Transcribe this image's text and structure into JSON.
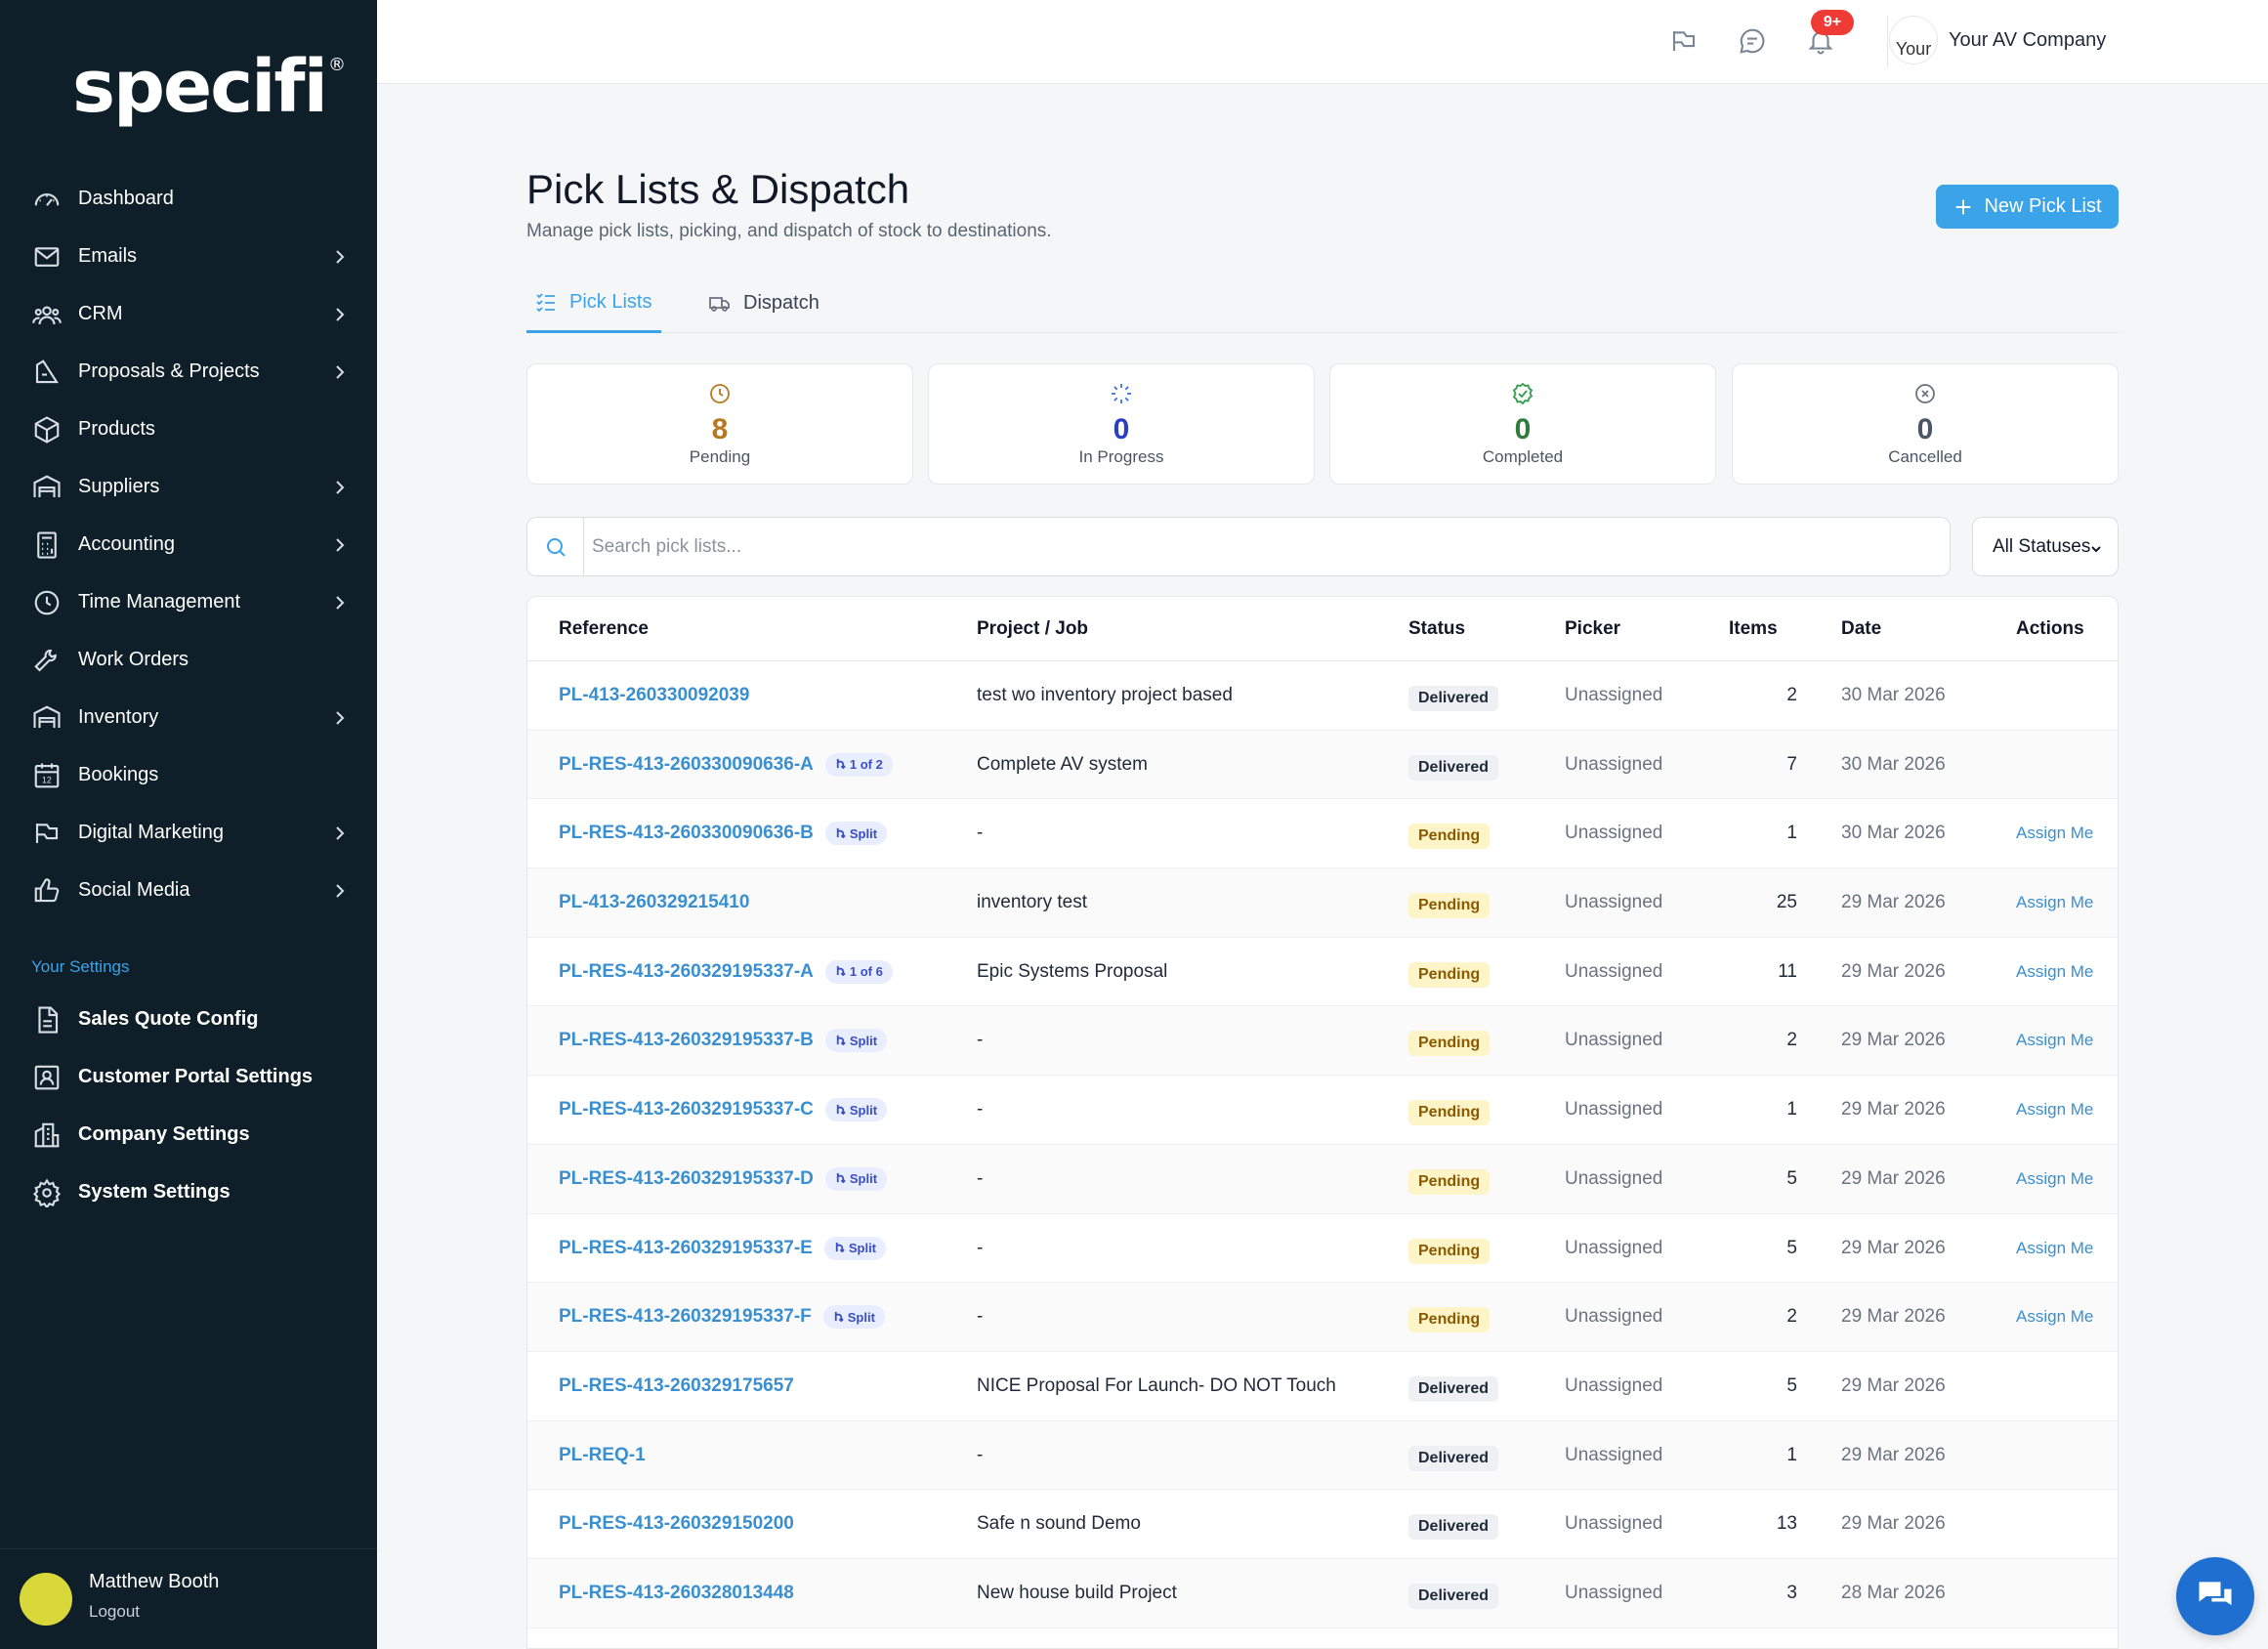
{
  "brand": {
    "logo_text": "specifi",
    "reg": "®"
  },
  "sidebar": {
    "items": [
      {
        "label": "Dashboard",
        "icon": "gauge-icon",
        "chevron": false
      },
      {
        "label": "Emails",
        "icon": "mail-icon",
        "chevron": true
      },
      {
        "label": "CRM",
        "icon": "users-icon",
        "chevron": true
      },
      {
        "label": "Proposals & Projects",
        "icon": "drafting-icon",
        "chevron": true
      },
      {
        "label": "Products",
        "icon": "box-icon",
        "chevron": false
      },
      {
        "label": "Suppliers",
        "icon": "warehouse-icon",
        "chevron": true
      },
      {
        "label": "Accounting",
        "icon": "calculator-icon",
        "chevron": true
      },
      {
        "label": "Time Management",
        "icon": "clock-icon",
        "chevron": true
      },
      {
        "label": "Work Orders",
        "icon": "tools-icon",
        "chevron": false
      },
      {
        "label": "Inventory",
        "icon": "warehouse-icon",
        "chevron": true
      },
      {
        "label": "Bookings",
        "icon": "calendar-icon",
        "chevron": false
      },
      {
        "label": "Digital Marketing",
        "icon": "megaphone-icon",
        "chevron": true
      },
      {
        "label": "Social Media",
        "icon": "thumbs-up-icon",
        "chevron": true
      }
    ],
    "settings_title": "Your Settings",
    "settings": [
      {
        "label": "Sales Quote Config",
        "icon": "document-icon"
      },
      {
        "label": "Customer Portal Settings",
        "icon": "portal-icon"
      },
      {
        "label": "Company Settings",
        "icon": "building-icon"
      },
      {
        "label": "System Settings",
        "icon": "gear-icon"
      }
    ],
    "user": {
      "name": "Matthew Booth",
      "logout": "Logout"
    }
  },
  "header": {
    "notification_badge": "9+",
    "company_logo_text": "Your",
    "company_name": "Your AV Company"
  },
  "page": {
    "title": "Pick Lists & Dispatch",
    "subtitle": "Manage pick lists, picking, and dispatch of stock to destinations.",
    "new_button": "New Pick List"
  },
  "tabs": [
    {
      "label": "Pick Lists",
      "active": true
    },
    {
      "label": "Dispatch",
      "active": false
    }
  ],
  "stats": [
    {
      "value": "8",
      "label": "Pending",
      "color": "#b7791f"
    },
    {
      "value": "0",
      "label": "In Progress",
      "color": "#2b3fc2"
    },
    {
      "value": "0",
      "label": "Completed",
      "color": "#2f7d3b"
    },
    {
      "value": "0",
      "label": "Cancelled",
      "color": "#4b5563"
    }
  ],
  "search": {
    "placeholder": "Search pick lists...",
    "status_filter": "All Statuses"
  },
  "table": {
    "headers": [
      "Reference",
      "Project / Job",
      "Status",
      "Picker",
      "Items",
      "Date",
      "Actions"
    ],
    "rows": [
      {
        "ref": "PL-413-260330092039",
        "tag": "",
        "project": "test wo inventory project based",
        "status": "Delivered",
        "picker": "Unassigned",
        "items": "2",
        "date": "30 Mar 2026",
        "action": ""
      },
      {
        "ref": "PL-RES-413-260330090636-A",
        "tag": "1 of 2",
        "project": "Complete AV system",
        "status": "Delivered",
        "picker": "Unassigned",
        "items": "7",
        "date": "30 Mar 2026",
        "action": ""
      },
      {
        "ref": "PL-RES-413-260330090636-B",
        "tag": "Split",
        "project": "-",
        "status": "Pending",
        "picker": "Unassigned",
        "items": "1",
        "date": "30 Mar 2026",
        "action": "Assign Me"
      },
      {
        "ref": "PL-413-260329215410",
        "tag": "",
        "project": "inventory test",
        "status": "Pending",
        "picker": "Unassigned",
        "items": "25",
        "date": "29 Mar 2026",
        "action": "Assign Me"
      },
      {
        "ref": "PL-RES-413-260329195337-A",
        "tag": "1 of 6",
        "project": "Epic Systems Proposal",
        "status": "Pending",
        "picker": "Unassigned",
        "items": "11",
        "date": "29 Mar 2026",
        "action": "Assign Me"
      },
      {
        "ref": "PL-RES-413-260329195337-B",
        "tag": "Split",
        "project": "-",
        "status": "Pending",
        "picker": "Unassigned",
        "items": "2",
        "date": "29 Mar 2026",
        "action": "Assign Me"
      },
      {
        "ref": "PL-RES-413-260329195337-C",
        "tag": "Split",
        "project": "-",
        "status": "Pending",
        "picker": "Unassigned",
        "items": "1",
        "date": "29 Mar 2026",
        "action": "Assign Me"
      },
      {
        "ref": "PL-RES-413-260329195337-D",
        "tag": "Split",
        "project": "-",
        "status": "Pending",
        "picker": "Unassigned",
        "items": "5",
        "date": "29 Mar 2026",
        "action": "Assign Me"
      },
      {
        "ref": "PL-RES-413-260329195337-E",
        "tag": "Split",
        "project": "-",
        "status": "Pending",
        "picker": "Unassigned",
        "items": "5",
        "date": "29 Mar 2026",
        "action": "Assign Me"
      },
      {
        "ref": "PL-RES-413-260329195337-F",
        "tag": "Split",
        "project": "-",
        "status": "Pending",
        "picker": "Unassigned",
        "items": "2",
        "date": "29 Mar 2026",
        "action": "Assign Me"
      },
      {
        "ref": "PL-RES-413-260329175657",
        "tag": "",
        "project": "NICE Proposal For Launch- DO NOT Touch",
        "status": "Delivered",
        "picker": "Unassigned",
        "items": "5",
        "date": "29 Mar 2026",
        "action": ""
      },
      {
        "ref": "PL-REQ-1",
        "tag": "",
        "project": "-",
        "status": "Delivered",
        "picker": "Unassigned",
        "items": "1",
        "date": "29 Mar 2026",
        "action": ""
      },
      {
        "ref": "PL-RES-413-260329150200",
        "tag": "",
        "project": "Safe n sound Demo",
        "status": "Delivered",
        "picker": "Unassigned",
        "items": "13",
        "date": "29 Mar 2026",
        "action": ""
      },
      {
        "ref": "PL-RES-413-260328013448",
        "tag": "",
        "project": "New house build Project",
        "status": "Delivered",
        "picker": "Unassigned",
        "items": "3",
        "date": "28 Mar 2026",
        "action": ""
      }
    ]
  }
}
